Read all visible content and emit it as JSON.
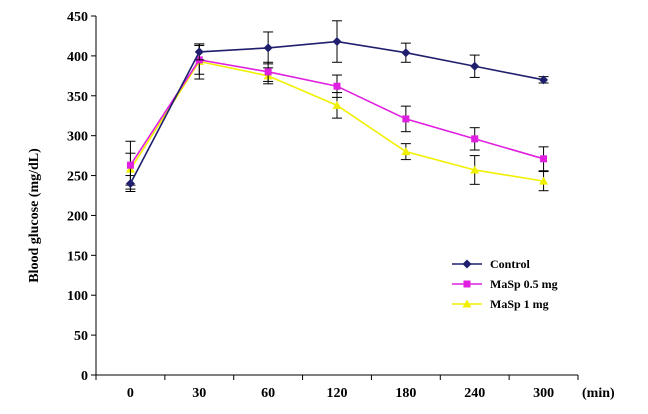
{
  "chart_data": {
    "type": "line",
    "categories": [
      "0",
      "30",
      "60",
      "120",
      "180",
      "240",
      "300"
    ],
    "xunit": "(min)",
    "ylabel": "Blood glucose (mg/dL)",
    "ylim": [
      0,
      450
    ],
    "yticks": [
      "0",
      "50",
      "100",
      "150",
      "200",
      "250",
      "300",
      "350",
      "400",
      "450"
    ],
    "grid": false,
    "legend_position": "bottom-right",
    "series": [
      {
        "name": "Control",
        "color": "#1f1f6e",
        "marker": "diamond",
        "values": [
          240,
          405,
          410,
          418,
          404,
          387,
          370
        ],
        "errors": [
          10,
          10,
          20,
          26,
          12,
          14,
          4
        ]
      },
      {
        "name": "MaSp 0.5 mg",
        "color": "#e020e0",
        "marker": "square",
        "values": [
          263,
          395,
          380,
          362,
          321,
          296,
          271
        ],
        "errors": [
          30,
          18,
          12,
          14,
          16,
          14,
          15
        ]
      },
      {
        "name": "MaSp 1 mg",
        "color": "#f0f000",
        "marker": "triangle",
        "values": [
          258,
          393,
          375,
          338,
          280,
          257,
          243
        ],
        "errors": [
          20,
          22,
          10,
          16,
          10,
          18,
          12
        ]
      }
    ]
  }
}
